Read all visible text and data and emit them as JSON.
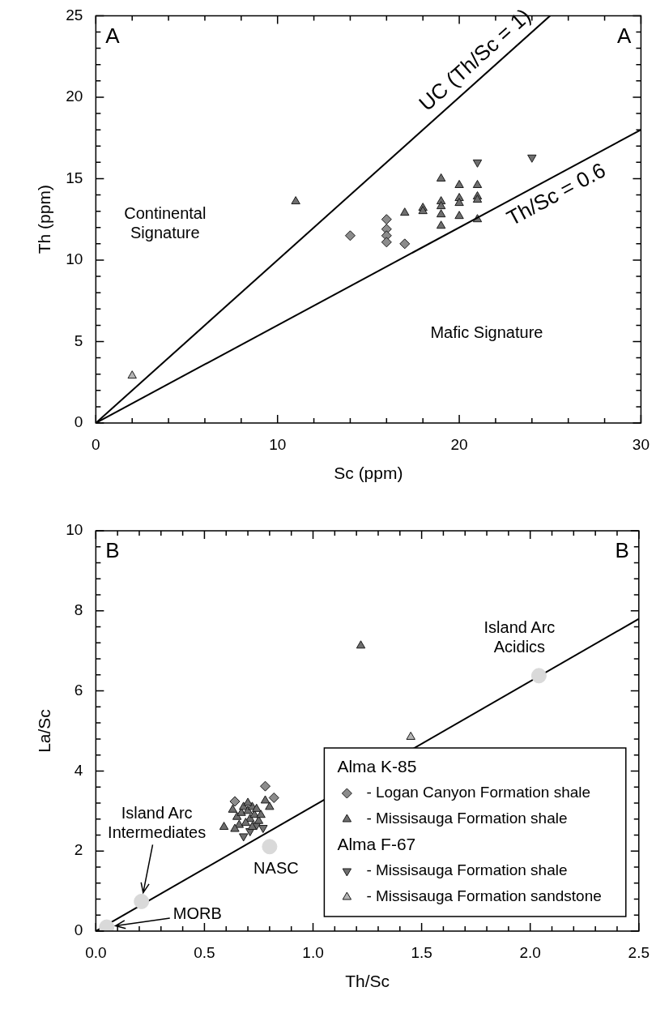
{
  "chart_data": [
    {
      "type": "scatter",
      "xlabel": "Sc (ppm)",
      "ylabel": "Th (ppm)",
      "xlim": [
        0,
        30
      ],
      "ylim": [
        0,
        25
      ],
      "xticks": [
        0,
        {
          "value": 2,
          "label": null
        },
        {
          "value": 4,
          "label": null
        },
        {
          "value": 6,
          "label": null
        },
        {
          "value": 8,
          "label": null
        },
        10,
        {
          "value": 12,
          "label": null
        },
        {
          "value": 14,
          "label": null
        },
        {
          "value": 16,
          "label": null
        },
        {
          "value": 18,
          "label": null
        },
        20,
        {
          "value": 22,
          "label": null
        },
        {
          "value": 24,
          "label": null
        },
        {
          "value": 26,
          "label": null
        },
        {
          "value": 28,
          "label": null
        },
        30
      ],
      "yticks": [
        0,
        {
          "value": 1,
          "label": null
        },
        {
          "value": 2,
          "label": null
        },
        {
          "value": 3,
          "label": null
        },
        {
          "value": 4,
          "label": null
        },
        5,
        {
          "value": 6,
          "label": null
        },
        {
          "value": 7,
          "label": null
        },
        {
          "value": 8,
          "label": null
        },
        {
          "value": 9,
          "label": null
        },
        10,
        {
          "value": 11,
          "label": null
        },
        {
          "value": 12,
          "label": null
        },
        {
          "value": 13,
          "label": null
        },
        {
          "value": 14,
          "label": null
        },
        15,
        {
          "value": 16,
          "label": null
        },
        {
          "value": 17,
          "label": null
        },
        {
          "value": 18,
          "label": null
        },
        {
          "value": 19,
          "label": null
        },
        20,
        {
          "value": 21,
          "label": null
        },
        {
          "value": 22,
          "label": null
        },
        {
          "value": 23,
          "label": null
        },
        {
          "value": 24,
          "label": null
        },
        25
      ],
      "series": [
        {
          "name": "UC (Th/Sc = 1)",
          "type": "line",
          "marker": "none",
          "color": "#000000",
          "x": [
            0,
            25
          ],
          "values": [
            0,
            25
          ]
        },
        {
          "name": "Th/Sc = 0.6",
          "type": "line",
          "marker": "none",
          "color": "#000000",
          "x": [
            0,
            30
          ],
          "values": [
            0,
            18
          ]
        },
        {
          "marker": "diamond",
          "color": "#8c8c8c",
          "x": [
            14,
            16,
            16,
            16,
            16,
            17
          ],
          "values": [
            11.5,
            12.5,
            11.9,
            11.5,
            11.1,
            11.0
          ]
        },
        {
          "marker": "triangle",
          "color": "#6e6e6e",
          "x": [
            11,
            17,
            18,
            18,
            19,
            19,
            19,
            19,
            19,
            20,
            20,
            20,
            20,
            21,
            21,
            21,
            21
          ],
          "values": [
            13.6,
            12.9,
            13.2,
            13.0,
            15.0,
            13.6,
            13.3,
            12.8,
            12.1,
            14.6,
            13.8,
            13.5,
            12.7,
            14.6,
            13.9,
            13.7,
            12.5
          ]
        },
        {
          "marker": "triangle-down",
          "color": "#6e6e6e",
          "x": [
            21,
            24
          ],
          "values": [
            16.0,
            16.3
          ]
        },
        {
          "marker": "triangle",
          "color": "#b4b4b4",
          "x": [
            2
          ],
          "values": [
            2.9
          ]
        }
      ],
      "annotations": [
        "A",
        "A",
        "Continental\nSignature",
        "Mafic Signature"
      ]
    },
    {
      "type": "scatter",
      "xlabel": "Th/Sc",
      "ylabel": "La/Sc",
      "xlim": [
        0,
        2.5
      ],
      "ylim": [
        0,
        10
      ],
      "legend": "bottom right",
      "xticks": [
        {
          "value": 0,
          "label": "0.0"
        },
        {
          "value": 0.1,
          "label": null
        },
        {
          "value": 0.2,
          "label": null
        },
        {
          "value": 0.3,
          "label": null
        },
        {
          "value": 0.4,
          "label": null
        },
        0.5,
        {
          "value": 0.6,
          "label": null
        },
        {
          "value": 0.7,
          "label": null
        },
        {
          "value": 0.8,
          "label": null
        },
        {
          "value": 0.9,
          "label": null
        },
        {
          "value": 1,
          "label": "1.0"
        },
        {
          "value": 1.1,
          "label": null
        },
        {
          "value": 1.2,
          "label": null
        },
        {
          "value": 1.3,
          "label": null
        },
        {
          "value": 1.4,
          "label": null
        },
        1.5,
        {
          "value": 1.6,
          "label": null
        },
        {
          "value": 1.7,
          "label": null
        },
        {
          "value": 1.8,
          "label": null
        },
        {
          "value": 1.9,
          "label": null
        },
        {
          "value": 2,
          "label": "2.0"
        },
        {
          "value": 2.1,
          "label": null
        },
        {
          "value": 2.2,
          "label": null
        },
        {
          "value": 2.3,
          "label": null
        },
        {
          "value": 2.4,
          "label": null
        },
        2.5
      ],
      "yticks": [
        0,
        {
          "value": 0.4,
          "label": null
        },
        {
          "value": 0.8,
          "label": null
        },
        {
          "value": 1.2,
          "label": null
        },
        {
          "value": 1.6,
          "label": null
        },
        2,
        {
          "value": 2.4,
          "label": null
        },
        {
          "value": 2.8,
          "label": null
        },
        {
          "value": 3.2,
          "label": null
        },
        {
          "value": 3.6,
          "label": null
        },
        4,
        {
          "value": 4.4,
          "label": null
        },
        {
          "value": 4.8,
          "label": null
        },
        {
          "value": 5.2,
          "label": null
        },
        {
          "value": 5.6,
          "label": null
        },
        6,
        {
          "value": 6.4,
          "label": null
        },
        {
          "value": 6.8,
          "label": null
        },
        {
          "value": 7.2,
          "label": null
        },
        {
          "value": 7.6,
          "label": null
        },
        8,
        {
          "value": 8.4,
          "label": null
        },
        {
          "value": 8.8,
          "label": null
        },
        {
          "value": 9.2,
          "label": null
        },
        {
          "value": 9.6,
          "label": null
        },
        10
      ],
      "series": [
        {
          "name": "MORB",
          "marker": "circle",
          "color": "#d9d9d9",
          "x": [
            0.05
          ],
          "values": [
            0.1
          ]
        },
        {
          "name": "Island Arc\nIntermediates",
          "marker": "circle",
          "color": "#d9d9d9",
          "x": [
            0.21
          ],
          "values": [
            0.74
          ]
        },
        {
          "name": "NASC",
          "marker": "circle",
          "color": "#d9d9d9",
          "x": [
            0.8
          ],
          "values": [
            2.11
          ]
        },
        {
          "name": "Island Arc\nAcidics",
          "marker": "circle",
          "color": "#d9d9d9",
          "x": [
            2.04
          ],
          "values": [
            6.38
          ]
        },
        {
          "type": "line",
          "marker": "none",
          "color": "#000000",
          "x": [
            0,
            2.5
          ],
          "values": [
            0,
            7.8
          ]
        },
        {
          "name": "- Logan Canyon Formation shale",
          "marker": "diamond",
          "color": "#8c8c8c",
          "x": [
            0.78,
            0.82,
            0.64
          ],
          "values": [
            3.62,
            3.33,
            3.24
          ]
        },
        {
          "name": "- Missisauga Formation shale",
          "marker": "triangle",
          "color": "#6e6e6e",
          "x": [
            0.78,
            0.59,
            0.63,
            0.65,
            0.67,
            0.68,
            0.7,
            0.71,
            0.72,
            0.73,
            0.74,
            0.75,
            0.76,
            0.66,
            0.69,
            0.64,
            0.72,
            0.7,
            0.8,
            1.22
          ],
          "values": [
            3.26,
            2.6,
            3.03,
            2.85,
            2.95,
            3.1,
            3.0,
            2.8,
            3.1,
            2.9,
            3.05,
            2.75,
            2.9,
            2.65,
            2.7,
            2.55,
            2.6,
            3.2,
            3.1,
            7.13
          ]
        },
        {
          "name": "- Missisauga Formation shale",
          "marker": "triangle-down",
          "color": "#6e6e6e",
          "x": [
            0.68,
            0.77,
            0.71,
            0.74
          ],
          "values": [
            2.37,
            2.58,
            2.5,
            2.65
          ]
        },
        {
          "name": "- Missisauga Formation sandstone",
          "marker": "triangle",
          "color": "#b4b4b4",
          "x": [
            1.45
          ],
          "values": [
            4.85
          ]
        }
      ],
      "annotations": [
        "B",
        "B",
        "Alma K-85",
        "Alma F-67"
      ]
    }
  ]
}
